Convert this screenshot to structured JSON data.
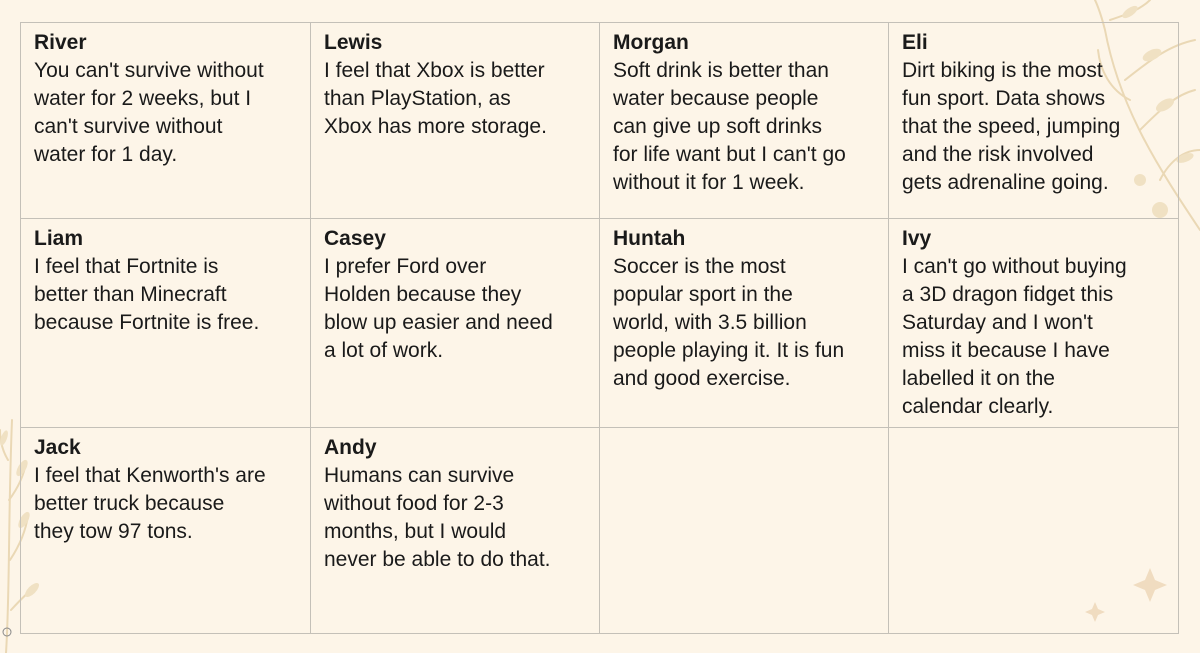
{
  "cells": [
    {
      "name": "River",
      "text": "You can't survive without\nwater for 2 weeks, but I\ncan't survive without\nwater for 1 day."
    },
    {
      "name": "Lewis",
      "text": "I feel that Xbox is better\nthan PlayStation, as\nXbox has more storage."
    },
    {
      "name": "Morgan",
      "text": "Soft drink is better than\nwater because people\ncan give up soft drinks\nfor life want but I can't go\nwithout it for 1 week."
    },
    {
      "name": "Eli",
      "text": "Dirt biking is the most\nfun sport. Data shows\nthat the speed, jumping\nand the risk involved\ngets adrenaline going."
    },
    {
      "name": "Liam",
      "text": "I feel that Fortnite is\nbetter than Minecraft\nbecause Fortnite is free."
    },
    {
      "name": "Casey",
      "text": "I prefer Ford over\nHolden because they\nblow up easier and need\na lot of work."
    },
    {
      "name": "Huntah",
      "text": "Soccer is the most\npopular sport in the\nworld, with 3.5 billion\npeople playing it. It is fun\nand good exercise."
    },
    {
      "name": "Ivy",
      "text": "I can't go without buying\na 3D dragon fidget this\nSaturday and I won't\nmiss it because I have\nlabelled it on the\ncalendar clearly."
    },
    {
      "name": "Jack",
      "text": "I feel that Kenworth's are\nbetter truck because\nthey tow 97 tons."
    },
    {
      "name": "Andy",
      "text": "Humans can survive\nwithout food for 2-3\nmonths, but I would\nnever be able to do that."
    }
  ],
  "colors": {
    "background": "#fdf5e8",
    "grid_border": "#c4c0b8",
    "text": "#1a1a1a",
    "decoration": "#ead8b5"
  },
  "decorations": [
    "top-right-floral-icon",
    "bottom-left-floral-icon",
    "sparkle-icon"
  ]
}
